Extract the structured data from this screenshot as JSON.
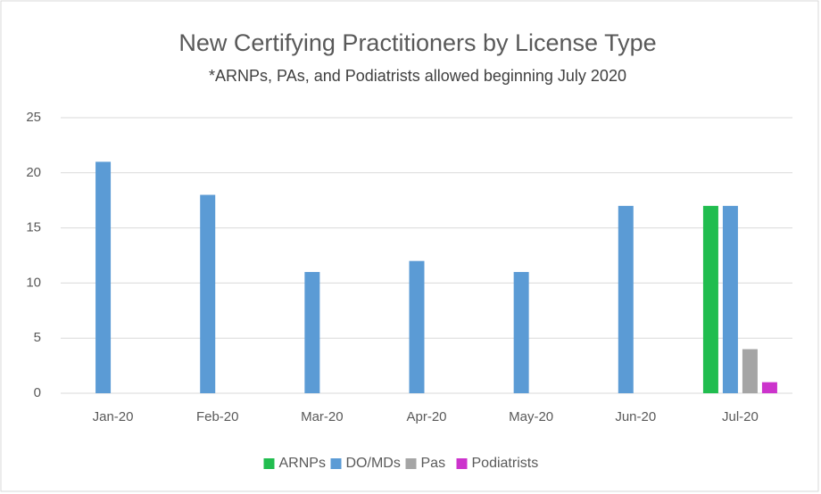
{
  "chart_data": {
    "type": "bar",
    "title": "New Certifying Practitioners by License Type",
    "subtitle": "*ARNPs,  PAs, and Podiatrists allowed beginning July 2020",
    "categories": [
      "Jan-20",
      "Feb-20",
      "Mar-20",
      "Apr-20",
      "May-20",
      "Jun-20",
      "Jul-20"
    ],
    "series": [
      {
        "name": "ARNPs",
        "color": "#21bd4f",
        "values": [
          null,
          null,
          null,
          null,
          null,
          null,
          17
        ]
      },
      {
        "name": "DO/MDs",
        "color": "#5b9bd5",
        "values": [
          21,
          18,
          11,
          12,
          11,
          17,
          17
        ]
      },
      {
        "name": "Pas",
        "color": "#a5a5a5",
        "values": [
          null,
          null,
          null,
          null,
          null,
          null,
          4
        ]
      },
      {
        "name": "Podiatrists",
        "color": "#cc33cc",
        "values": [
          null,
          null,
          null,
          null,
          null,
          null,
          1
        ]
      }
    ],
    "ylim": [
      0,
      25
    ],
    "yticks": [
      0,
      5,
      10,
      15,
      20,
      25
    ],
    "grid": true,
    "legend": "bottom"
  }
}
